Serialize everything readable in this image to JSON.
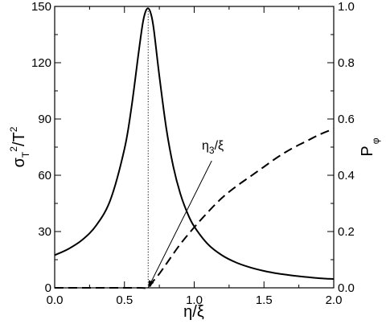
{
  "chart_data": {
    "type": "line",
    "x_axis": {
      "label_main": "η/ξ",
      "range": [
        0.0,
        2.0
      ],
      "ticks": [
        "0.0",
        "0.5",
        "1.0",
        "1.5",
        "2.0"
      ]
    },
    "y_left": {
      "label_parts": [
        "σ",
        "T",
        "2",
        "/T",
        "2"
      ],
      "range": [
        0,
        150
      ],
      "ticks": [
        "0",
        "30",
        "60",
        "90",
        "120",
        "150"
      ]
    },
    "y_right": {
      "label_parts": [
        "P",
        "φ"
      ],
      "range": [
        0.0,
        1.0
      ],
      "ticks": [
        "0.0",
        "0.2",
        "0.4",
        "0.6",
        "0.8",
        "1.0"
      ]
    },
    "annotation": {
      "parts": [
        "η",
        "3",
        "/ξ"
      ],
      "arrow_target_x": 0.67,
      "arrow_target_y_right": 0.0
    },
    "vertical_marker_x": 0.67,
    "series": [
      {
        "axis": "left",
        "style": "solid",
        "x": [
          0.0,
          0.1,
          0.2,
          0.3,
          0.4,
          0.5,
          0.55,
          0.6,
          0.63,
          0.65,
          0.67,
          0.69,
          0.71,
          0.75,
          0.8,
          0.85,
          0.9,
          0.95,
          1.0,
          1.1,
          1.2,
          1.3,
          1.4,
          1.5,
          1.6,
          1.7,
          1.8,
          1.9,
          2.0
        ],
        "y": [
          17.4,
          20.8,
          25.7,
          33.5,
          47.0,
          74.0,
          96.0,
          124.5,
          140.5,
          147.0,
          149.0,
          146.0,
          138.0,
          113.0,
          85.0,
          64.7,
          50.3,
          40.1,
          32.7,
          23.1,
          17.3,
          13.5,
          10.9,
          9.0,
          7.6,
          6.6,
          5.8,
          5.1,
          4.7
        ]
      },
      {
        "axis": "right",
        "style": "dashed",
        "x": [
          0.0,
          0.3,
          0.6,
          0.67,
          0.7,
          0.75,
          0.8,
          0.9,
          1.0,
          1.1,
          1.2,
          1.3,
          1.4,
          1.5,
          1.6,
          1.7,
          1.8,
          1.9,
          2.0
        ],
        "y": [
          0.0,
          0.0,
          0.0,
          0.0,
          0.02,
          0.05,
          0.085,
          0.155,
          0.215,
          0.27,
          0.32,
          0.36,
          0.395,
          0.43,
          0.465,
          0.495,
          0.52,
          0.545,
          0.565
        ]
      }
    ]
  }
}
